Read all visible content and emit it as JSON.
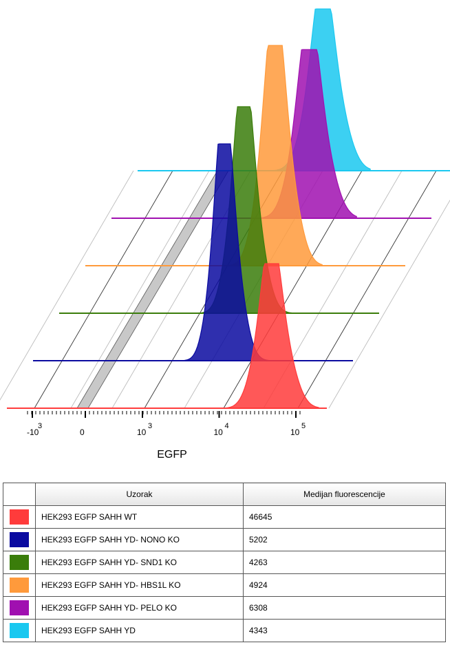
{
  "chart_data": {
    "type": "histogram-offset",
    "xlabel": "EGFP",
    "x_scale": "biexponential",
    "x_ticks": [
      {
        "label_base": "-10",
        "label_exp": "3",
        "value": -1000
      },
      {
        "label_base": "0",
        "label_exp": "",
        "value": 0
      },
      {
        "label_base": "10",
        "label_exp": "3",
        "value": 1000
      },
      {
        "label_base": "10",
        "label_exp": "4",
        "value": 10000
      },
      {
        "label_base": "10",
        "label_exp": "5",
        "value": 100000
      }
    ],
    "series": [
      {
        "name": "HEK293 EGFP SAHH WT",
        "color": "#ff3b3b",
        "median": 46645
      },
      {
        "name": "HEK293 EGFP SAHH YD- NONO KO",
        "color": "#0a0aa0",
        "median": 5202
      },
      {
        "name": "HEK293 EGFP SAHH YD- SND1 KO",
        "color": "#3a7d0a",
        "median": 4263
      },
      {
        "name": "HEK293 EGFP SAHH YD- HBS1L KO",
        "color": "#ff9a3b",
        "median": 4924
      },
      {
        "name": "HEK293 EGFP SAHH YD- PELO KO",
        "color": "#a010b0",
        "median": 6308
      },
      {
        "name": "HEK293 EGFP SAHH YD",
        "color": "#1ac8f0",
        "median": 4343
      }
    ]
  },
  "table": {
    "headers": [
      "Uzorak",
      "Medijan fluorescencije"
    ],
    "rows": [
      {
        "label": "HEK293 EGFP SAHH WT",
        "value": "46645",
        "color": "#ff3b3b"
      },
      {
        "label": "HEK293 EGFP SAHH YD- NONO KO",
        "value": "5202",
        "color": "#0a0aa0"
      },
      {
        "label": "HEK293 EGFP SAHH YD- SND1 KO",
        "value": "4263",
        "color": "#3a7d0a"
      },
      {
        "label": "HEK293 EGFP SAHH YD- HBS1L KO",
        "value": "4924",
        "color": "#ff9a3b"
      },
      {
        "label": "HEK293 EGFP SAHH YD- PELO KO",
        "value": "6308",
        "color": "#a010b0"
      },
      {
        "label": "HEK293 EGFP SAHH YD",
        "value": "4343",
        "color": "#1ac8f0"
      }
    ]
  }
}
